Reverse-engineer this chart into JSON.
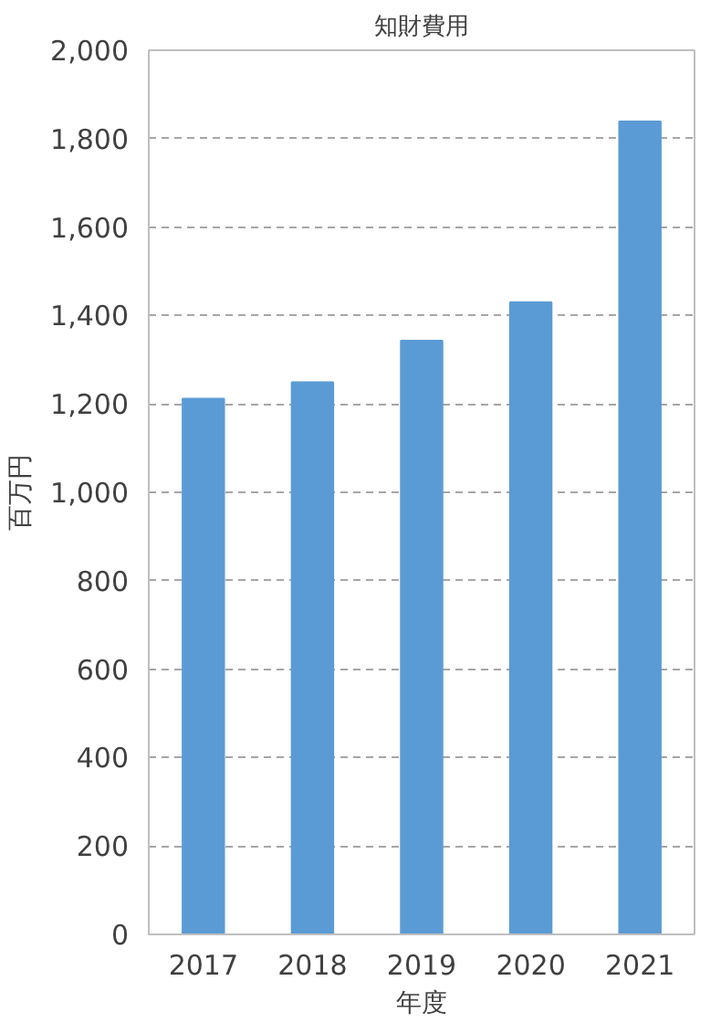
{
  "chart_data": {
    "type": "bar",
    "title": "知財費用",
    "xlabel": "年度",
    "ylabel": "百万円",
    "categories": [
      "2017",
      "2018",
      "2019",
      "2020",
      "2021"
    ],
    "values": [
      1212,
      1249,
      1343,
      1430,
      1839
    ],
    "color": "#5b9bd5",
    "ylim": [
      0,
      2000
    ],
    "yticks": [
      {
        "value": 0,
        "label": "0"
      },
      {
        "value": 200,
        "label": "200"
      },
      {
        "value": 400,
        "label": "400"
      },
      {
        "value": 600,
        "label": "600"
      },
      {
        "value": 800,
        "label": "800"
      },
      {
        "value": 1000,
        "label": "1,000"
      },
      {
        "value": 1200,
        "label": "1,200"
      },
      {
        "value": 1400,
        "label": "1,400"
      },
      {
        "value": 1600,
        "label": "1,600"
      },
      {
        "value": 1800,
        "label": "1,800"
      },
      {
        "value": 2000,
        "label": "2,000"
      }
    ],
    "grid": "y"
  }
}
